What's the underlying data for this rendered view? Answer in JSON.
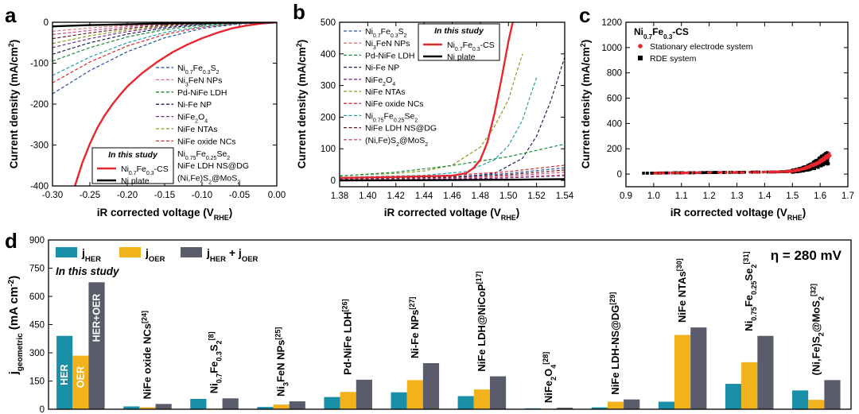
{
  "chart_data": [
    {
      "panel": "a",
      "type": "line",
      "xlabel": "iR corrected voltage (V",
      "xlabel_sub": "RHE",
      "ylabel": "Current density (mA/cm",
      "ylabel_sup": "2",
      "xlim": [
        -0.3,
        0.0
      ],
      "ylim": [
        -400,
        0
      ],
      "xticks": [
        "-0.30",
        "-0.25",
        "-0.20",
        "-0.15",
        "-0.10",
        "-0.05",
        "0.00"
      ],
      "yticks": [
        "0",
        "-100",
        "-200",
        "-300",
        "-400"
      ],
      "legend_dashed": [
        "Ni0.7Fe0.3S2",
        "Ni3FeN NPs",
        "Pd-NiFe LDH",
        "Ni-Fe NP",
        "NiFe2O4",
        "NiFe NTAs",
        "NiFe oxide NCs",
        "Ni0.75Fe0.25Se2",
        "NiFe LDH NS@DG",
        "(Ni,Fe)S2@MoS2"
      ],
      "legend_solid_title": "In this study",
      "legend_solid": [
        "Ni0.7Fe0.3-CS",
        "Ni plate"
      ],
      "series": [
        {
          "name": "Ni0.7Fe0.3-CS",
          "color": "#e8262e",
          "style": "solid",
          "x": [
            -0.27,
            -0.26,
            -0.25,
            -0.24,
            -0.23,
            -0.22,
            -0.21,
            -0.2,
            -0.18,
            -0.16,
            -0.14,
            -0.12,
            -0.1,
            -0.08,
            -0.06,
            -0.04,
            -0.02,
            0.0
          ],
          "y": [
            -400,
            -343,
            -297,
            -258,
            -227,
            -201,
            -178,
            -157,
            -124,
            -97,
            -74,
            -55,
            -39,
            -26,
            -15,
            -8,
            -3,
            0
          ]
        },
        {
          "name": "Ni plate",
          "color": "#000000",
          "style": "solid",
          "x": [
            -0.3,
            -0.25,
            -0.2,
            -0.15,
            -0.1,
            -0.05,
            0.0
          ],
          "y": [
            -10,
            -7,
            -5,
            -3,
            -2,
            -1,
            0
          ]
        },
        {
          "name": "Ni0.7Fe0.3S2",
          "color": "#1f4fa8",
          "style": "dashed",
          "x": [
            -0.3,
            -0.25,
            -0.2,
            -0.15,
            -0.1,
            -0.05,
            0.0
          ],
          "y": [
            -175,
            -118,
            -72,
            -38,
            -15,
            -4,
            0
          ]
        },
        {
          "name": "NiFe oxide NCs",
          "color": "#d62830",
          "style": "dashed",
          "x": [
            -0.3,
            -0.25,
            -0.2,
            -0.15,
            -0.1,
            -0.05,
            0.0
          ],
          "y": [
            -148,
            -97,
            -58,
            -30,
            -12,
            -3,
            0
          ]
        },
        {
          "name": "Ni0.75Fe0.25Se2",
          "color": "#1fa1a8",
          "style": "dashed",
          "x": [
            -0.3,
            -0.25,
            -0.2,
            -0.15,
            -0.1,
            -0.05,
            0.0
          ],
          "y": [
            -130,
            -85,
            -50,
            -25,
            -10,
            -3,
            0
          ]
        },
        {
          "name": "Pd-NiFe LDH",
          "color": "#1a8a3a",
          "style": "dashed",
          "x": [
            -0.3,
            -0.25,
            -0.2,
            -0.15,
            -0.1,
            -0.05,
            0.0
          ],
          "y": [
            -95,
            -62,
            -36,
            -18,
            -7,
            -2,
            0
          ]
        },
        {
          "name": "Ni-Fe NP",
          "color": "#1b1e5c",
          "style": "dashed",
          "x": [
            -0.3,
            -0.25,
            -0.2,
            -0.15,
            -0.1,
            -0.05,
            0.0
          ],
          "y": [
            -78,
            -50,
            -29,
            -14,
            -5,
            -1,
            0
          ]
        },
        {
          "name": "NiFe2O4",
          "color": "#7b2a8c",
          "style": "dashed",
          "x": [
            -0.3,
            -0.25,
            -0.2,
            -0.15,
            -0.1,
            -0.05,
            0.0
          ],
          "y": [
            -62,
            -40,
            -23,
            -11,
            -4,
            -1,
            0
          ]
        },
        {
          "name": "NiFe NTAs",
          "color": "#8a9a1f",
          "style": "dashed",
          "x": [
            -0.3,
            -0.25,
            -0.2,
            -0.15,
            -0.1,
            -0.05,
            0.0
          ],
          "y": [
            -52,
            -33,
            -19,
            -9,
            -3,
            -1,
            0
          ]
        },
        {
          "name": "NiFe LDH NS@DG",
          "color": "#6b1c1c",
          "style": "dashed",
          "x": [
            -0.3,
            -0.25,
            -0.2,
            -0.15,
            -0.1,
            -0.05,
            0.0
          ],
          "y": [
            -40,
            -26,
            -15,
            -7,
            -3,
            -1,
            0
          ]
        },
        {
          "name": "(Ni,Fe)S2@MoS2",
          "color": "#c44a8a",
          "style": "dashed",
          "x": [
            -0.3,
            -0.25,
            -0.2,
            -0.15,
            -0.1,
            -0.05,
            0.0
          ],
          "y": [
            -30,
            -20,
            -11,
            -5,
            -2,
            -1,
            0
          ]
        },
        {
          "name": "Ni3FeN NPs",
          "color": "#e0707a",
          "style": "dashed",
          "x": [
            -0.3,
            -0.25,
            -0.2,
            -0.15,
            -0.1,
            -0.05,
            0.0
          ],
          "y": [
            -22,
            -14,
            -8,
            -4,
            -2,
            0,
            0
          ]
        }
      ]
    },
    {
      "panel": "b",
      "type": "line",
      "xlabel": "iR corrected voltage (V",
      "xlabel_sub": "RHE",
      "ylabel": "Current density (mA/cm",
      "ylabel_sup": "2",
      "xlim": [
        1.38,
        1.54
      ],
      "ylim": [
        -20,
        500
      ],
      "xticks": [
        "1.38",
        "1.40",
        "1.42",
        "1.44",
        "1.46",
        "1.48",
        "1.50",
        "1.52",
        "1.54"
      ],
      "yticks": [
        "0",
        "100",
        "200",
        "300",
        "400",
        "500"
      ],
      "legend_dashed": [
        "Ni0.7Fe0.3S2",
        "Ni3FeN NPs",
        "Pd-NiFe LDH",
        "Ni-Fe NP",
        "NiFe2O4",
        "NiFe NTAs",
        "NiFe oxide NCs",
        "Ni0.75Fe0.25Se2",
        "NiFe LDH NS@DG",
        "(Ni,Fe)S2@MoS2"
      ],
      "legend_solid_title": "In this study",
      "legend_solid": [
        "Ni0.7Fe0.3-CS",
        "Ni plate"
      ],
      "series": [
        {
          "name": "Ni0.7Fe0.3-CS",
          "color": "#e8262e",
          "style": "solid",
          "x": [
            1.38,
            1.42,
            1.46,
            1.47,
            1.475,
            1.48,
            1.485,
            1.49,
            1.495,
            1.5,
            1.503
          ],
          "y": [
            8,
            11,
            15,
            23,
            38,
            65,
            120,
            210,
            320,
            440,
            500
          ]
        },
        {
          "name": "Ni plate",
          "color": "#000000",
          "style": "solid",
          "x": [
            1.38,
            1.46,
            1.5,
            1.54
          ],
          "y": [
            0,
            1,
            2,
            4
          ]
        },
        {
          "name": "NiFe NTAs",
          "color": "#8a9a1f",
          "style": "dashed",
          "x": [
            1.38,
            1.42,
            1.44,
            1.46,
            1.48,
            1.49,
            1.5,
            1.505,
            1.51
          ],
          "y": [
            15,
            22,
            30,
            48,
            105,
            170,
            255,
            330,
            400
          ]
        },
        {
          "name": "Ni0.75Fe0.25Se2",
          "color": "#1fa1a8",
          "style": "dashed",
          "x": [
            1.38,
            1.44,
            1.47,
            1.49,
            1.5,
            1.51,
            1.515,
            1.52
          ],
          "y": [
            10,
            16,
            28,
            65,
            110,
            190,
            260,
            325
          ]
        },
        {
          "name": "Ni-Fe NP",
          "color": "#1b1e5c",
          "style": "dashed",
          "x": [
            1.38,
            1.46,
            1.49,
            1.51,
            1.52,
            1.53,
            1.535,
            1.54
          ],
          "y": [
            5,
            9,
            22,
            70,
            140,
            250,
            320,
            390
          ]
        },
        {
          "name": "Pd-NiFe LDH",
          "color": "#1a8a3a",
          "style": "dashed",
          "x": [
            1.38,
            1.42,
            1.46,
            1.5,
            1.54
          ],
          "y": [
            14,
            26,
            47,
            75,
            115
          ]
        },
        {
          "name": "NiFe oxide NCs",
          "color": "#d62830",
          "style": "dashed",
          "x": [
            1.38,
            1.46,
            1.5,
            1.54
          ],
          "y": [
            6,
            16,
            28,
            48
          ]
        },
        {
          "name": "Ni0.7Fe0.3S2",
          "color": "#1f4fa8",
          "style": "dashed",
          "x": [
            1.38,
            1.46,
            1.5,
            1.54
          ],
          "y": [
            4,
            12,
            22,
            40
          ]
        },
        {
          "name": "NiFe LDH NS@DG",
          "color": "#6b1c1c",
          "style": "dashed",
          "x": [
            1.38,
            1.46,
            1.5,
            1.54
          ],
          "y": [
            3,
            10,
            18,
            33
          ]
        },
        {
          "name": "(Ni,Fe)S2@MoS2",
          "color": "#c44a8a",
          "style": "dashed",
          "x": [
            1.38,
            1.46,
            1.5,
            1.54
          ],
          "y": [
            2,
            7,
            14,
            26
          ]
        },
        {
          "name": "Ni3FeN NPs",
          "color": "#e0707a",
          "style": "dashed",
          "x": [
            1.38,
            1.46,
            1.5,
            1.54
          ],
          "y": [
            1,
            5,
            10,
            18
          ]
        },
        {
          "name": "NiFe2O4",
          "color": "#7b2a8c",
          "style": "dashed",
          "x": [
            1.38,
            1.46,
            1.5,
            1.54
          ],
          "y": [
            1,
            4,
            8,
            15
          ]
        }
      ]
    },
    {
      "panel": "c",
      "type": "scatter",
      "title": "Ni0.7Fe0.3-CS",
      "xlabel": "iR corrected voltage (V",
      "xlabel_sub": "RHE",
      "ylabel": "Current density (mA/cm",
      "ylabel_sup": "2",
      "xlim": [
        0.9,
        1.7
      ],
      "ylim": [
        -100,
        1200
      ],
      "xticks": [
        "0.9",
        "1.0",
        "1.1",
        "1.2",
        "1.3",
        "1.4",
        "1.5",
        "1.6",
        "1.7"
      ],
      "yticks": [
        "0",
        "200",
        "400",
        "600",
        "800",
        "1000",
        "1200"
      ],
      "series": [
        {
          "name": "Stationary electrode system",
          "color": "#e8262e",
          "marker": "circle"
        },
        {
          "name": "RDE system",
          "color": "#000000",
          "marker": "square"
        }
      ]
    },
    {
      "panel": "d",
      "type": "bar",
      "annotation": "η = 280 mV",
      "study_label": "In this study",
      "ylabel": "j",
      "ylabel_sub": "geometric",
      "ylabel_unit": " (mA cm",
      "ylabel_sup": "-2",
      "ylim": [
        0,
        900
      ],
      "yticks": [
        "0",
        "150",
        "300",
        "450",
        "600",
        "750",
        "900"
      ],
      "legend": [
        {
          "label": "j",
          "sub": "HER",
          "color": "#1a8fa8"
        },
        {
          "label": "j",
          "sub": "OER",
          "color": "#f2b21c"
        },
        {
          "label": "j",
          "sub": "HER",
          "label2": " + j",
          "sub2": "OER",
          "color": "#5a5c6b"
        }
      ],
      "inbar_labels": [
        "HER",
        "OER",
        "HER+OER"
      ],
      "categories": [
        {
          "name": "This study",
          "label": ""
        },
        {
          "name": "NiFe oxide NCs",
          "label": "NiFe oxide NCs",
          "ref": "[24]"
        },
        {
          "name": "Ni0.7Fe0.3S2",
          "label": "Ni0.7Fe0.3S2",
          "ref": "[8]"
        },
        {
          "name": "Ni3FeN NPs",
          "label": "Ni3FeN NPs",
          "ref": "[25]"
        },
        {
          "name": "Pd-NiFe LDH",
          "label": "Pd-NiFe LDH",
          "ref": "[26]"
        },
        {
          "name": "Ni-Fe NPs",
          "label": "Ni-Fe NPs",
          "ref": "[27]"
        },
        {
          "name": "NiFe LDH@NiCoP",
          "label": "NiFe LDH@NiCoP",
          "ref": "[17]"
        },
        {
          "name": "NiFe2O4",
          "label": "NiFe2O4",
          "ref": "[28]"
        },
        {
          "name": "NiFe LDH-NS@DG",
          "label": "NiFe LDH-NS@DG",
          "ref": "[29]"
        },
        {
          "name": "NiFe NTAs",
          "label": "NiFe NTAs",
          "ref": "[30]"
        },
        {
          "name": "Ni0.75Fe0.25Se2",
          "label": "Ni0.75Fe0.25Se2",
          "ref": "[31]"
        },
        {
          "name": "(Ni,Fe)S2@MoS2",
          "label": "(Ni,Fe)S2@MoS2",
          "ref": "[32]"
        }
      ],
      "series": [
        {
          "name": "jHER",
          "values": [
            390,
            15,
            55,
            12,
            65,
            90,
            70,
            5,
            10,
            40,
            135,
            100
          ]
        },
        {
          "name": "jOER",
          "values": [
            285,
            10,
            3,
            25,
            92,
            155,
            105,
            3,
            40,
            395,
            250,
            50
          ]
        },
        {
          "name": "jHER + jOER",
          "values": [
            675,
            28,
            58,
            42,
            157,
            245,
            175,
            8,
            52,
            435,
            390,
            155
          ]
        }
      ]
    }
  ]
}
